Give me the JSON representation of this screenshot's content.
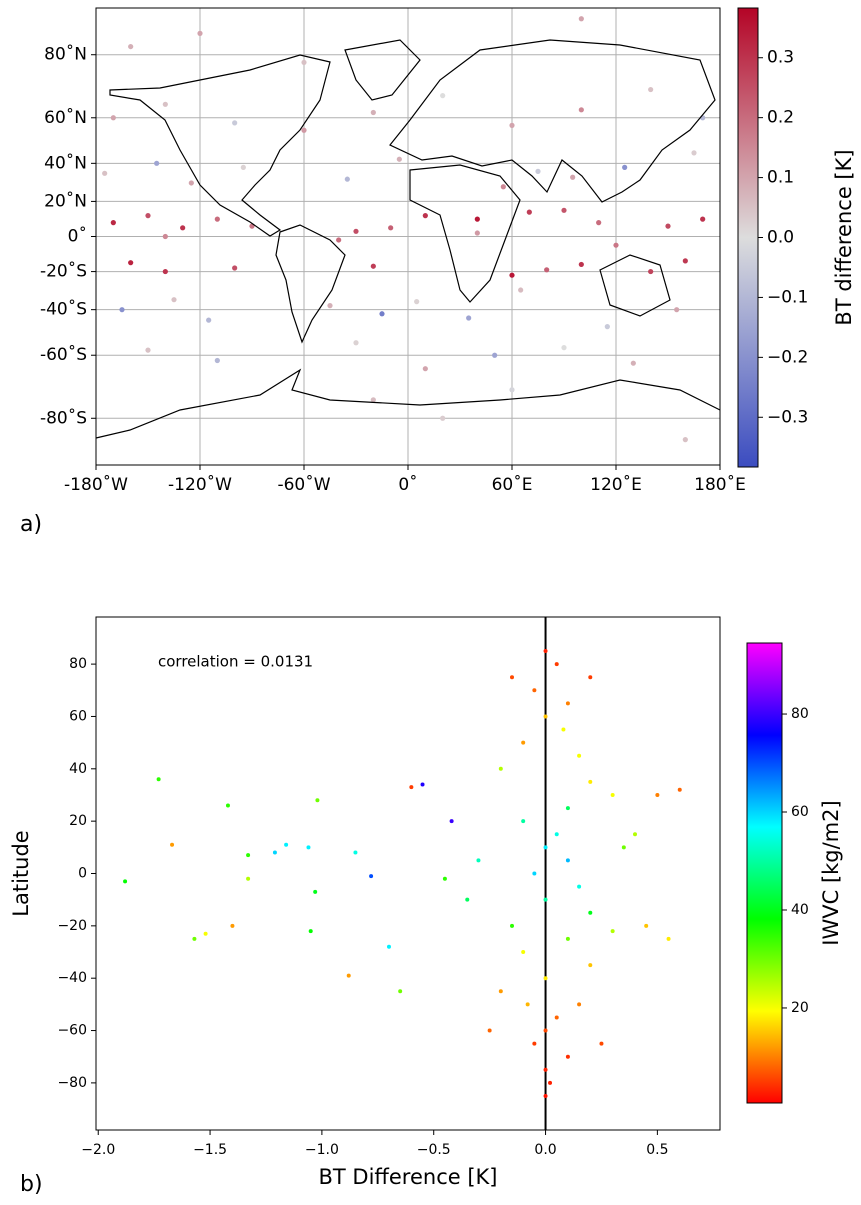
{
  "chart_data": [
    {
      "type": "scatter",
      "projection": "miller",
      "panel_label": "a)",
      "colorbar_label": "BT difference [K]",
      "xlim": [
        -180,
        180
      ],
      "ylim": [
        -90,
        90
      ],
      "grid": true,
      "xticks": [
        {
          "value": -180,
          "label": "-180˚W"
        },
        {
          "value": -120,
          "label": "-120˚W"
        },
        {
          "value": -60,
          "label": "-60˚W"
        },
        {
          "value": 0,
          "label": "0˚"
        },
        {
          "value": 60,
          "label": "60˚E"
        },
        {
          "value": 120,
          "label": "120˚E"
        },
        {
          "value": 180,
          "label": "180˚E"
        }
      ],
      "yticks": [
        {
          "value": 80,
          "label": "80˚N"
        },
        {
          "value": 60,
          "label": "60˚N"
        },
        {
          "value": 40,
          "label": "40˚N"
        },
        {
          "value": 20,
          "label": "20˚N"
        },
        {
          "value": 0,
          "label": "0˚"
        },
        {
          "value": -20,
          "label": "-20˚S"
        },
        {
          "value": -40,
          "label": "-40˚S"
        },
        {
          "value": -60,
          "label": "-60˚S"
        },
        {
          "value": -80,
          "label": "-80˚S"
        }
      ],
      "clim": [
        -0.383,
        0.383
      ],
      "cticks": [
        0.3,
        0.2,
        0.1,
        {
          "value": 0,
          "label": "0.0"
        },
        {
          "value": -0.1,
          "label": "−0.1"
        },
        {
          "value": -0.2,
          "label": "−0.2"
        },
        {
          "value": -0.3,
          "label": "−0.3"
        }
      ],
      "cmap": [
        "#3b4cc0",
        "#dddddd",
        "#b40426"
      ],
      "x": [
        -170,
        -150,
        -130,
        -110,
        -90,
        -30,
        -10,
        10,
        40,
        70,
        90,
        110,
        150,
        170,
        -160,
        -140,
        -100,
        -20,
        60,
        80,
        100,
        140,
        160,
        -175,
        -145,
        -125,
        -95,
        -35,
        -5,
        55,
        75,
        95,
        125,
        165,
        -165,
        -135,
        -115,
        -45,
        -15,
        5,
        35,
        65,
        115,
        155,
        -170,
        -140,
        -100,
        -60,
        -20,
        20,
        60,
        100,
        140,
        170,
        -150,
        -110,
        -30,
        10,
        50,
        90,
        130,
        -160,
        -120,
        -60,
        -20,
        20,
        60,
        100,
        160,
        -140,
        -40,
        40,
        120
      ],
      "y": [
        8,
        12,
        5,
        10,
        6,
        3,
        5,
        12,
        10,
        14,
        15,
        8,
        6,
        10,
        -15,
        -20,
        -18,
        -17,
        -22,
        -19,
        -16,
        -20,
        -14,
        35,
        40,
        30,
        38,
        32,
        42,
        28,
        36,
        33,
        38,
        45,
        -40,
        -35,
        -45,
        -38,
        -42,
        -36,
        -44,
        -30,
        -48,
        -40,
        60,
        65,
        58,
        55,
        62,
        68,
        57,
        63,
        70,
        60,
        -58,
        -62,
        -55,
        -65,
        -60,
        -57,
        -63,
        82,
        85,
        78,
        -75,
        -80,
        -72,
        88,
        -85,
        0,
        -2,
        2,
        -5
      ],
      "c": [
        0.32,
        0.25,
        0.3,
        0.2,
        0.18,
        0.25,
        0.22,
        0.3,
        0.35,
        0.28,
        0.24,
        0.2,
        0.26,
        0.3,
        0.33,
        0.3,
        0.25,
        0.28,
        0.35,
        0.22,
        0.3,
        0.27,
        0.29,
        0.05,
        -0.15,
        0.1,
        0.02,
        -0.1,
        0.08,
        0.15,
        -0.05,
        0.1,
        -0.2,
        0.03,
        -0.2,
        0.05,
        -0.1,
        0.08,
        -0.25,
        0.02,
        -0.15,
        0.06,
        -0.05,
        0.1,
        0.1,
        0.05,
        -0.05,
        0.12,
        0.08,
        0.0,
        0.1,
        0.15,
        0.05,
        -0.1,
        0.05,
        -0.1,
        0.02,
        0.1,
        -0.15,
        0.0,
        0.08,
        0.08,
        0.1,
        0.05,
        0.06,
        0.03,
        -0.02,
        0.1,
        0.05,
        0.15,
        0.2,
        0.12,
        0.18
      ]
    },
    {
      "type": "scatter",
      "panel_label": "b)",
      "x_label": "BT Difference [K]",
      "y_label": "Latitude",
      "colorbar_label": "IWVC [kg/m2]",
      "annotation": "correlation = 0.0131",
      "vline": 0,
      "xlim": [
        -2.01,
        0.78
      ],
      "ylim": [
        -98,
        98
      ],
      "xticks": [
        {
          "value": -2,
          "label": "−2.0"
        },
        {
          "value": -1.5,
          "label": "−1.5"
        },
        {
          "value": -1,
          "label": "−1.0"
        },
        {
          "value": -0.5,
          "label": "−0.5"
        },
        {
          "value": 0,
          "label": "0.0"
        },
        0.5
      ],
      "yticks": [
        80,
        60,
        40,
        20,
        0,
        {
          "value": -20,
          "label": "−20"
        },
        {
          "value": -40,
          "label": "−40"
        },
        {
          "value": -60,
          "label": "−60"
        },
        {
          "value": -80,
          "label": "−80"
        }
      ],
      "clim": [
        0.6,
        94.5
      ],
      "cticks": [
        20,
        40,
        60,
        80
      ],
      "cmap": [
        "#ff0000",
        "#ffff00",
        "#00ff00",
        "#00ffff",
        "#0000ff",
        "#ff00ff"
      ],
      "x": [
        -1.88,
        -1.73,
        -1.67,
        -1.57,
        -1.52,
        -1.42,
        -1.4,
        -1.33,
        -1.33,
        -1.21,
        -1.16,
        -1.06,
        -1.05,
        -1.03,
        -1.02,
        -0.88,
        -0.85,
        -0.78,
        -0.7,
        -0.65,
        -0.6,
        -0.55,
        -0.42,
        -0.45,
        0.0,
        0.05,
        -0.05,
        0.1,
        0.0,
        -0.1,
        0.15,
        -0.2,
        0.2,
        0.3,
        0.1,
        -0.1,
        0.05,
        0.0,
        0.1,
        -0.05,
        0.15,
        0.0,
        0.2,
        -0.15,
        0.3,
        0.1,
        -0.1,
        0.2,
        0.0,
        -0.2,
        0.15,
        0.05,
        0.0,
        -0.05,
        0.1,
        0.0,
        0.02,
        0.0,
        0.5,
        0.6,
        0.45,
        0.55,
        -0.3,
        -0.35,
        0.35,
        0.4,
        -0.25,
        0.25,
        0.2,
        -0.15,
        0.08,
        -0.08
      ],
      "y": [
        -3,
        36,
        11,
        -25,
        -23,
        26,
        -20,
        7,
        -2,
        8,
        11,
        10,
        -22,
        -7,
        28,
        -39,
        8,
        -1,
        -28,
        -45,
        33,
        34,
        20,
        -2,
        85,
        80,
        70,
        65,
        60,
        50,
        45,
        40,
        35,
        30,
        25,
        20,
        15,
        10,
        5,
        0,
        -5,
        -10,
        -15,
        -20,
        -22,
        -25,
        -30,
        -35,
        -40,
        -45,
        -50,
        -55,
        -60,
        -65,
        -70,
        -75,
        -80,
        -85,
        30,
        32,
        -20,
        -25,
        5,
        -10,
        10,
        15,
        -60,
        -65,
        75,
        75,
        55,
        -50
      ],
      "c": [
        38,
        35,
        12,
        30,
        20,
        35,
        12,
        35,
        25,
        60,
        58,
        58,
        38,
        40,
        30,
        12,
        55,
        70,
        58,
        30,
        5,
        78,
        80,
        35,
        3,
        5,
        8,
        10,
        15,
        12,
        20,
        25,
        18,
        20,
        45,
        50,
        55,
        58,
        62,
        60,
        55,
        50,
        40,
        35,
        25,
        30,
        20,
        15,
        18,
        12,
        10,
        8,
        6,
        5,
        4,
        3,
        3,
        2,
        10,
        8,
        15,
        18,
        52,
        45,
        30,
        25,
        8,
        6,
        5,
        6,
        20,
        14
      ]
    }
  ]
}
